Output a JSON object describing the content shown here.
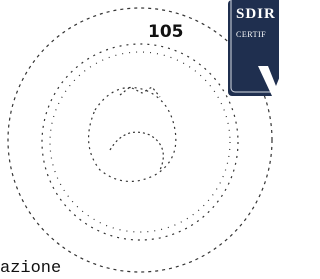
{
  "page_number": "105",
  "badge": {
    "title": "SDIR",
    "subtitle": "CERTIF"
  },
  "text": "azione"
}
